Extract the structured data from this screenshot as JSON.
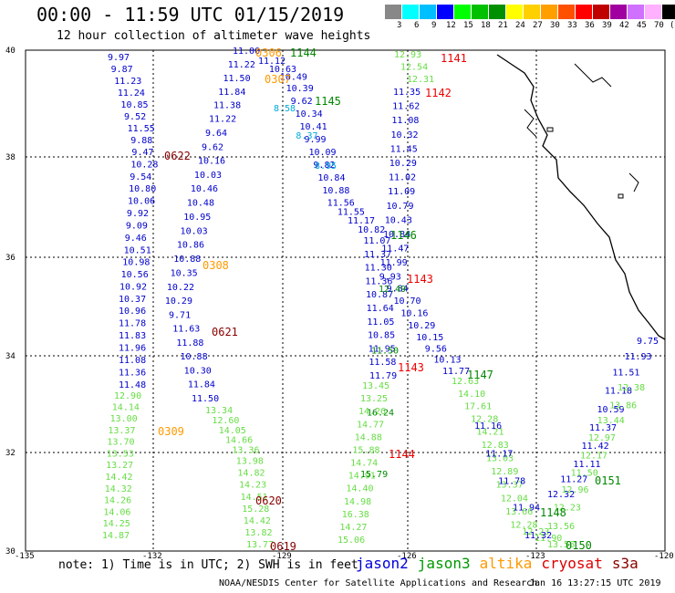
{
  "title": "00:00 - 11:59 UTC 01/15/2019",
  "subtitle": "12 hour collection of altimeter wave heights",
  "colorbar": {
    "unit": "(ft)",
    "ticks": [
      "3",
      "6",
      "9",
      "12",
      "15",
      "18",
      "21",
      "24",
      "27",
      "30",
      "33",
      "36",
      "39",
      "42",
      "45",
      "70"
    ],
    "colors": [
      "#888888",
      "#00ffff",
      "#00bfff",
      "#0000ff",
      "#00ff00",
      "#00c000",
      "#009000",
      "#ffff00",
      "#ffd000",
      "#ffa000",
      "#ff5000",
      "#ff0000",
      "#c00000",
      "#a000a0",
      "#d070ff",
      "#ffb0ff",
      "#000000"
    ]
  },
  "axes": {
    "lat_labels": [
      "40",
      "38",
      "36",
      "34",
      "32",
      "30"
    ],
    "lon_labels": [
      "-135",
      "-132",
      "-129",
      "-126",
      "-123",
      "-120"
    ]
  },
  "note": "note: 1) Time is in UTC; 2) SWH is in feet",
  "legend": [
    {
      "label": "jason2",
      "color": "#0000dd"
    },
    {
      "label": "jason3",
      "color": "#009900"
    },
    {
      "label": "altika",
      "color": "#ff9900"
    },
    {
      "label": "cryosat",
      "color": "#dd0000"
    },
    {
      "label": "s3a",
      "color": "#880000"
    }
  ],
  "credit": "NOAA/NESDIS Center for Satellite Applications and Research",
  "timestamp": "Jan 16 13:27:15 UTC 2019",
  "colors": {
    "blue": "#0000cc",
    "lightgreen": "#66dd44",
    "green": "#008800",
    "orange": "#ff9900",
    "red": "#ee0000",
    "darkred": "#880000",
    "cyan": "#00aadd",
    "grid": "#000000"
  },
  "pass_labels": [
    {
      "t": "1144",
      "c": "green"
    },
    {
      "t": "1145",
      "c": "green"
    },
    {
      "t": "1146",
      "c": "green"
    },
    {
      "t": "1147",
      "c": "green"
    },
    {
      "t": "1148",
      "c": "green"
    },
    {
      "t": "0151",
      "c": "green"
    },
    {
      "t": "0150",
      "c": "green"
    },
    {
      "t": "1141",
      "c": "red"
    },
    {
      "t": "1142",
      "c": "red"
    },
    {
      "t": "1143",
      "c": "red"
    },
    {
      "t": "1143",
      "c": "red"
    },
    {
      "t": "1144",
      "c": "red"
    },
    {
      "t": "0622",
      "c": "darkred"
    },
    {
      "t": "0621",
      "c": "darkred"
    },
    {
      "t": "0620",
      "c": "darkred"
    },
    {
      "t": "0619",
      "c": "darkred"
    },
    {
      "t": "0308",
      "c": "orange"
    },
    {
      "t": "0309",
      "c": "orange"
    },
    {
      "t": "0306",
      "c": "orange"
    },
    {
      "t": "0307",
      "c": "orange"
    }
  ],
  "tracks": [
    {
      "name": "track-a",
      "color": "blue",
      "values": [
        "9.97",
        "9.87",
        "11.23",
        "11.24",
        "10.85",
        "9.52",
        "11.55",
        "9.88",
        "9.47",
        "10.28",
        "9.54",
        "10.80",
        "10.06",
        "9.92",
        "9.09",
        "9.46",
        "10.51",
        "10.98",
        "10.56",
        "10.92",
        "10.37",
        "10.96",
        "11.78",
        "11.83",
        "11.96",
        "11.08",
        "11.36",
        "11.48"
      ]
    },
    {
      "name": "track-a-green",
      "color": "lightgreen",
      "values": [
        "12.90",
        "14.14",
        "13.00",
        "13.37",
        "13.70",
        "13.53",
        "13.27",
        "14.42",
        "14.32",
        "14.26",
        "14.06",
        "14.25",
        "14.87"
      ]
    },
    {
      "name": "track-b",
      "color": "blue",
      "values": [
        "11.00",
        "11.22",
        "11.50",
        "11.84",
        "11.38",
        "11.22",
        "9.64",
        "9.62",
        "10.16",
        "10.03",
        "10.46",
        "10.48",
        "10.95",
        "10.03",
        "10.86",
        "10.88",
        "10.35",
        "10.22",
        "10.29",
        "9.71",
        "11.63",
        "11.88",
        "10.88",
        "10.30",
        "11.84",
        "11.50"
      ]
    },
    {
      "name": "track-b-green",
      "color": "lightgreen",
      "values": [
        "13.34",
        "12.60",
        "14.05",
        "14.66",
        "13.36",
        "13.98",
        "14.82",
        "14.23",
        "14.51",
        "15.28",
        "14.42",
        "13.82",
        "13.77"
      ]
    },
    {
      "name": "track-c",
      "color": "blue",
      "values": [
        "11.12",
        "10.63",
        "10.49",
        "10.39",
        "9.62",
        "10.34",
        "10.41",
        "9.99",
        "10.09",
        "9.82",
        "10.84",
        "10.88",
        "11.56",
        "11.55",
        "11.17",
        "10.82",
        "11.07",
        "11.37",
        "11.30",
        "11.36",
        "10.87",
        "11.64",
        "11.05",
        "10.85",
        "11.95",
        "11.58",
        "11.79"
      ]
    },
    {
      "name": "track-c-green",
      "color": "lightgreen",
      "values": [
        "13.45",
        "13.25",
        "14.26",
        "14.77",
        "14.88",
        "15.88",
        "14.74",
        "14.91",
        "14.40",
        "14.98",
        "16.38",
        "14.27",
        "15.06"
      ]
    },
    {
      "name": "track-c-cyan",
      "color": "cyan",
      "values": [
        "8.58",
        "8.37",
        "8.95"
      ]
    },
    {
      "name": "track-d",
      "color": "lightgreen",
      "values": [
        "12.93",
        "12.54",
        "12.31"
      ]
    },
    {
      "name": "track-d-blue",
      "color": "blue",
      "values": [
        "11.35",
        "11.62",
        "11.08",
        "10.32",
        "11.45",
        "10.29",
        "11.02",
        "11.09",
        "10.79",
        "10.43",
        "10.84",
        "11.47",
        "11.99",
        "9.93",
        "9.84",
        "10.70",
        "10.16",
        "10.29",
        "10.15",
        "9.56",
        "10.13",
        "11.77"
      ]
    },
    {
      "name": "track-d-green",
      "color": "lightgreen",
      "values": [
        "12.63",
        "14.10",
        "17.61",
        "12.28",
        "14.21",
        "12.83",
        "13.03",
        "12.89",
        "13.37",
        "12.04",
        "13.66",
        "12.28",
        "12.23",
        "11.90",
        "13.56"
      ]
    },
    {
      "name": "track-d-blue2",
      "color": "blue",
      "values": [
        "11.16",
        "11.17",
        "11.78",
        "11.94",
        "11.32"
      ]
    },
    {
      "name": "track-e",
      "color": "blue",
      "values": [
        "9.75",
        "11.93",
        "11.51",
        "11.18",
        "10.59",
        "11.37",
        "11.42",
        "11.11",
        "11.27",
        "12.32"
      ]
    },
    {
      "name": "track-e-green",
      "color": "lightgreen",
      "values": [
        "12.38",
        "13.86",
        "13.44",
        "12.97",
        "12.17",
        "11.50",
        "12.96",
        "12.23",
        "13.56"
      ]
    },
    {
      "name": "green-bits",
      "color": "green",
      "values": [
        "12.49",
        "11.50",
        "16.24",
        "15.79"
      ]
    }
  ]
}
